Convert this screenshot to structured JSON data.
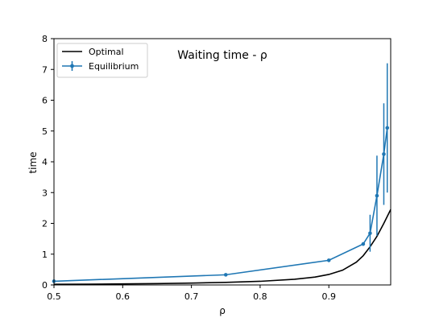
{
  "chart_data": {
    "type": "line",
    "title": "Waiting time - ρ",
    "xlabel": "ρ",
    "ylabel": "time",
    "xlim": [
      0.5,
      0.99
    ],
    "ylim": [
      0,
      8
    ],
    "x_ticks": [
      0.5,
      0.6,
      0.7,
      0.8,
      0.9
    ],
    "x_tick_labels": [
      "0.5",
      "0.6",
      "0.7",
      "0.8",
      "0.9"
    ],
    "y_ticks": [
      0,
      1,
      2,
      3,
      4,
      5,
      6,
      7,
      8
    ],
    "y_tick_labels": [
      "0",
      "1",
      "2",
      "3",
      "4",
      "5",
      "6",
      "7",
      "8"
    ],
    "grid": false,
    "legend_position": "top-left",
    "series": [
      {
        "name": "Optimal",
        "color": "#000000",
        "style": "line",
        "points": [
          [
            0.5,
            0.021
          ],
          [
            0.55,
            0.026
          ],
          [
            0.6,
            0.034
          ],
          [
            0.65,
            0.045
          ],
          [
            0.7,
            0.061
          ],
          [
            0.75,
            0.083
          ],
          [
            0.8,
            0.118
          ],
          [
            0.85,
            0.185
          ],
          [
            0.88,
            0.256
          ],
          [
            0.9,
            0.341
          ],
          [
            0.92,
            0.48
          ],
          [
            0.94,
            0.74
          ],
          [
            0.95,
            0.95
          ],
          [
            0.96,
            1.24
          ],
          [
            0.97,
            1.58
          ],
          [
            0.98,
            2.0
          ],
          [
            0.99,
            2.45
          ]
        ]
      },
      {
        "name": "Equilibrium",
        "color": "#1f77b4",
        "style": "errorbar",
        "points": [
          {
            "x": 0.5,
            "y": 0.12,
            "err": 0.02
          },
          {
            "x": 0.75,
            "y": 0.33,
            "err": 0.02
          },
          {
            "x": 0.9,
            "y": 0.8,
            "err": 0.04
          },
          {
            "x": 0.95,
            "y": 1.33,
            "err": 0.06
          },
          {
            "x": 0.96,
            "y": 1.68,
            "err": 0.6
          },
          {
            "x": 0.97,
            "y": 2.9,
            "err": 1.3
          },
          {
            "x": 0.98,
            "y": 4.25,
            "err": 1.65
          },
          {
            "x": 0.985,
            "y": 5.1,
            "err": 2.1
          }
        ]
      }
    ]
  }
}
